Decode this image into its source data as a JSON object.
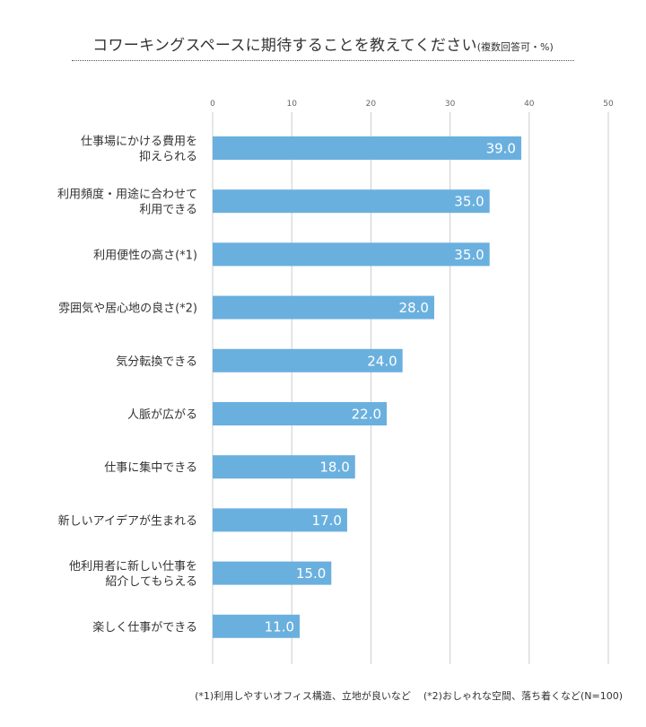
{
  "title": {
    "main": "コワーキングスペースに期待することを教えてください",
    "sub": "(複数回答可・%)"
  },
  "footnotes": {
    "note1": "(*1)利用しやすいオフィス構造、立地が良いなど",
    "note2": "(*2)おしゃれな空間、落ち着くなど(N=100)"
  },
  "colors": {
    "bar": "#6ab0df",
    "grid": "#cccccc",
    "label": "#333333",
    "value_label": "#ffffff"
  },
  "chart_data": {
    "type": "bar",
    "orientation": "horizontal",
    "categories": [
      [
        "仕事場にかける費用を",
        "抑えられる"
      ],
      [
        "利用頻度・用途に合わせて",
        "利用できる"
      ],
      [
        "利用便性の高さ(*1)"
      ],
      [
        "雰囲気や居心地の良さ(*2)"
      ],
      [
        "気分転換できる"
      ],
      [
        "人脈が広がる"
      ],
      [
        "仕事に集中できる"
      ],
      [
        "新しいアイデアが生まれる"
      ],
      [
        "他利用者に新しい仕事を",
        "紹介してもらえる"
      ],
      [
        "楽しく仕事ができる"
      ]
    ],
    "values": [
      39.0,
      35.0,
      35.0,
      28.0,
      24.0,
      22.0,
      18.0,
      17.0,
      15.0,
      11.0
    ],
    "value_labels": [
      "39.0",
      "35.0",
      "35.0",
      "28.0",
      "24.0",
      "22.0",
      "18.0",
      "17.0",
      "15.0",
      "11.0"
    ],
    "xlim": [
      0,
      50
    ],
    "xticks": [
      0,
      10,
      20,
      30,
      40,
      50
    ],
    "xtick_labels": [
      "0",
      "10",
      "20",
      "30",
      "40",
      "50"
    ],
    "xaxis_position": "top",
    "grid": true,
    "legend": "none"
  }
}
